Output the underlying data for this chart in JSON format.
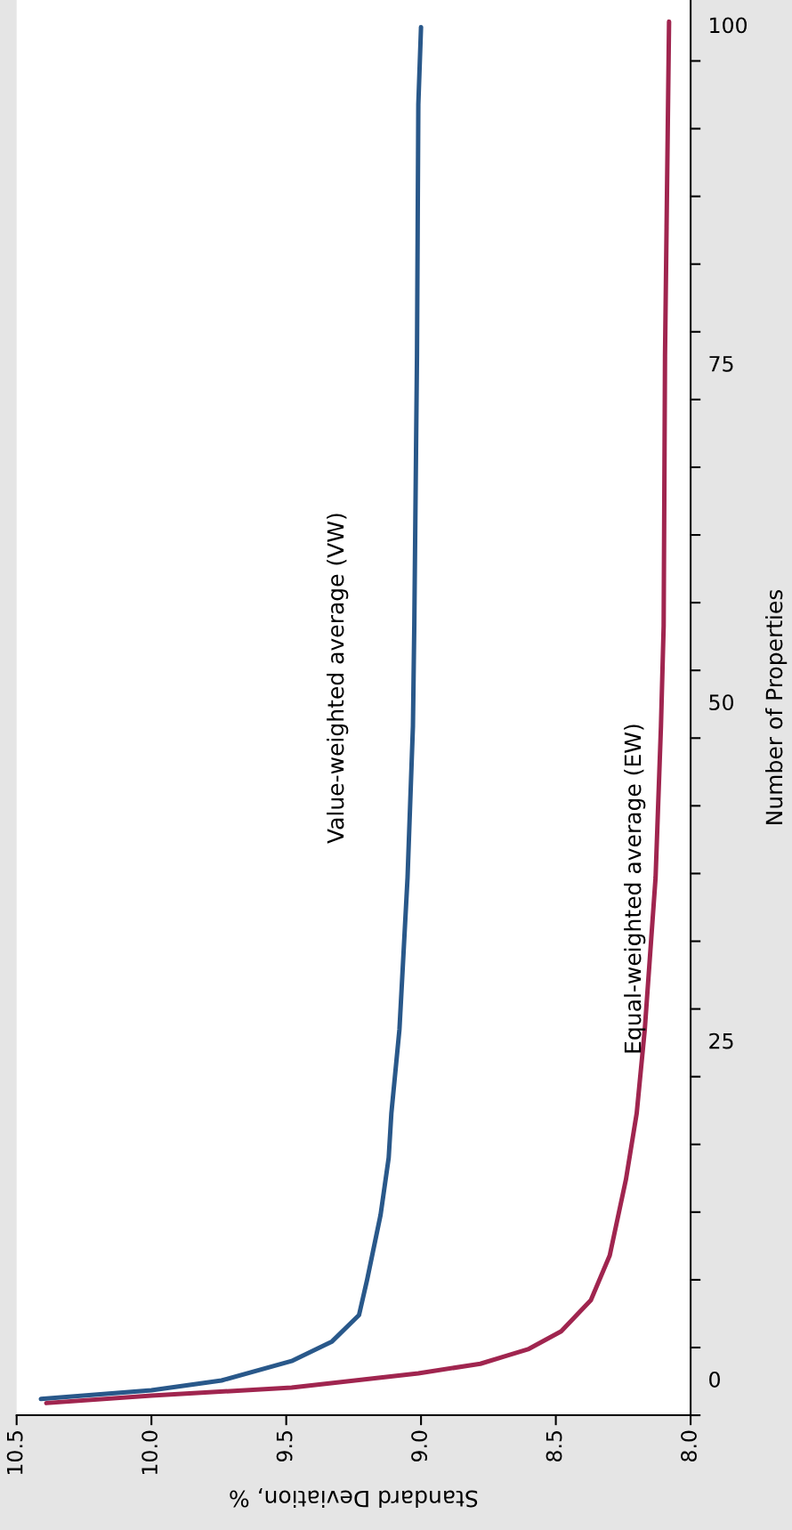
{
  "chart_data": {
    "type": "line",
    "xlabel": "Standard Deviation, %",
    "ylabel": "Number of Properties",
    "xlim": [
      10.5,
      8.0
    ],
    "ylim": [
      -2.5,
      102
    ],
    "xticks": [
      10.5,
      {
        "value": 10.0,
        "label": "10.0"
      },
      9.5,
      {
        "value": 9.0,
        "label": "9.0"
      },
      8.5,
      {
        "value": 8.0,
        "label": "8.0"
      }
    ],
    "yticks": [
      {
        "value": -2.5,
        "label": null
      },
      0,
      {
        "value": 2.5,
        "label": null
      },
      {
        "value": 7.5,
        "label": null
      },
      {
        "value": 12.5,
        "label": null
      },
      {
        "value": 17.5,
        "label": null
      },
      {
        "value": 22.5,
        "label": null
      },
      25,
      {
        "value": 27.5,
        "label": null
      },
      {
        "value": 32.5,
        "label": null
      },
      {
        "value": 37.5,
        "label": null
      },
      {
        "value": 42.5,
        "label": null
      },
      {
        "value": 47.5,
        "label": null
      },
      50,
      {
        "value": 52.5,
        "label": null
      },
      {
        "value": 57.5,
        "label": null
      },
      {
        "value": 62.5,
        "label": null
      },
      {
        "value": 67.5,
        "label": null
      },
      {
        "value": 72.5,
        "label": null
      },
      75,
      {
        "value": 77.5,
        "label": null
      },
      {
        "value": 82.5,
        "label": null
      },
      {
        "value": 87.5,
        "label": null
      },
      {
        "value": 92.5,
        "label": null
      },
      {
        "value": 97.5,
        "label": null
      },
      100
    ],
    "grid": false,
    "legend": false,
    "marker": "none",
    "line_style": "solid",
    "series": [
      {
        "color": "#29588a",
        "x": [
          10.41,
          10.0,
          9.74,
          9.48,
          9.33,
          9.23,
          9.2,
          9.15,
          9.12,
          9.11,
          9.08,
          9.05,
          9.03,
          9.025,
          9.015,
          9.01,
          9.0
        ],
        "values": [
          -1.3,
          -0.66,
          0.07,
          1.5,
          2.95,
          4.9,
          7.5,
          12.3,
          16.5,
          19.8,
          26,
          37.2,
          48.4,
          55.8,
          75.7,
          94.3,
          100.0
        ]
      },
      {
        "color": "#a0254f",
        "x": [
          10.39,
          10.0,
          9.48,
          9.01,
          8.78,
          8.6,
          8.48,
          8.37,
          8.3,
          8.24,
          8.2,
          8.17,
          8.13,
          8.11,
          8.1,
          8.095,
          8.08
        ],
        "values": [
          -1.6,
          -1.05,
          -0.46,
          0.6,
          1.3,
          2.4,
          3.7,
          6.0,
          9.3,
          14.9,
          19.8,
          26,
          37.2,
          48.4,
          55.8,
          75.7,
          100.4
        ]
      }
    ],
    "annotations": [
      "Value-weighted average (VW)",
      "Equal-weighted average (EW)"
    ]
  }
}
